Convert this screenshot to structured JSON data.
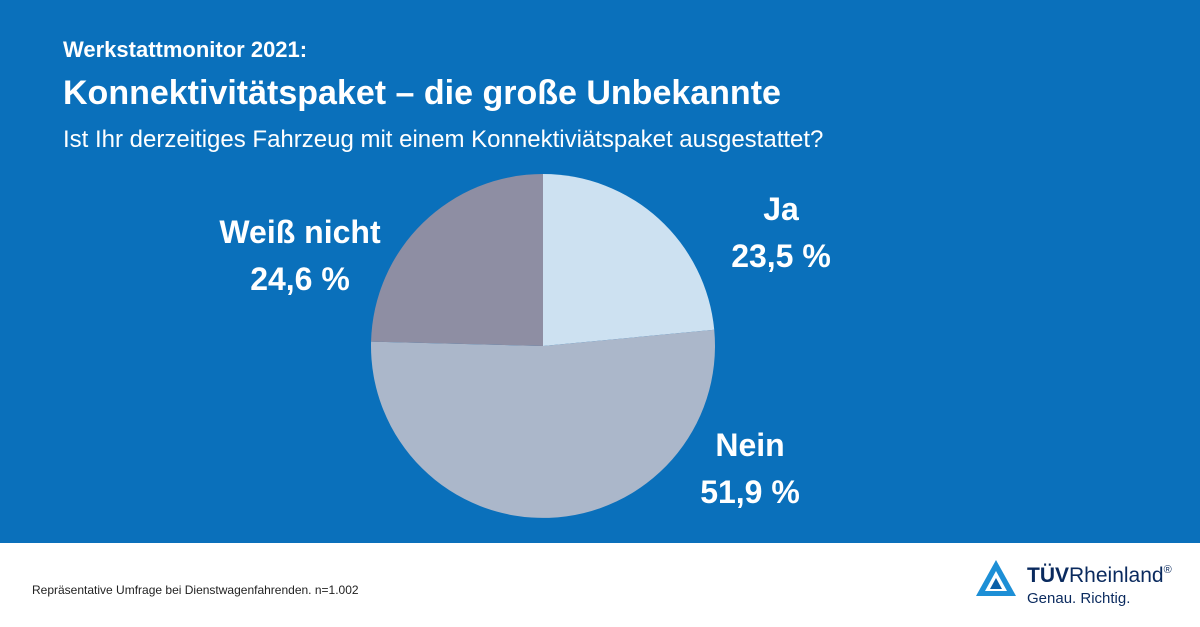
{
  "header": {
    "supertitle": "Werkstattmonitor 2021:",
    "title": "Konnektivitätspaket – die große Unbekannte",
    "subtitle": "Ist Ihr derzeitiges Fahrzeug mit einem Konnektiviätspaket ausgestattet?"
  },
  "chart_data": {
    "type": "pie",
    "slices": [
      {
        "label": "Ja",
        "value": 23.5,
        "value_label": "23,5 %",
        "color": "#cde1f1"
      },
      {
        "label": "Nein",
        "value": 51.9,
        "value_label": "51,9 %",
        "color": "#abb7ca"
      },
      {
        "label": "Weiß nicht",
        "value": 24.6,
        "value_label": "24,6 %",
        "color": "#8e8ea3"
      }
    ],
    "start": "12 o'clock, clockwise"
  },
  "footer": {
    "note": "Repräsentative Umfrage bei Dienstwagenfahrenden. n=1.002",
    "logo_bold": "TÜV",
    "logo_rest": "Rheinland",
    "logo_reg": "®",
    "logo_claim": "Genau. Richtig."
  },
  "colors": {
    "background": "#0a70bb",
    "text": "#ffffff",
    "logo_blue": "#0a2a5e"
  }
}
